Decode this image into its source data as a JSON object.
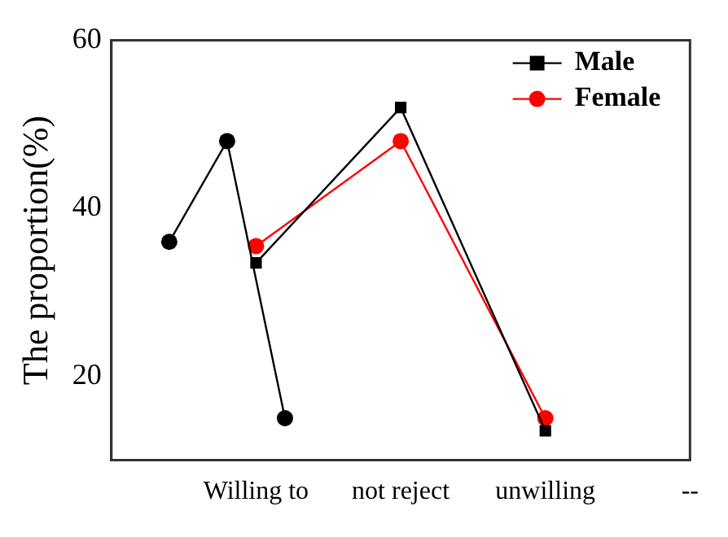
{
  "chart_data": {
    "type": "line",
    "ylabel": "The proportion(%)",
    "categories": [
      null,
      null,
      null,
      null,
      null,
      "Willing to",
      null,
      null,
      null,
      null,
      "not reject",
      null,
      null,
      null,
      null,
      "unwilling",
      null,
      null,
      null,
      null,
      "--"
    ],
    "ylim": [
      10,
      60
    ],
    "yticks": [
      20,
      40,
      60
    ],
    "grid": false,
    "legend": "top right",
    "line_style": "solid",
    "series": [
      {
        "color": "#000000",
        "marker": "circle",
        "values": [
          null,
          null,
          36,
          null,
          48,
          null,
          15,
          null,
          null,
          null,
          null,
          null,
          null,
          null,
          null,
          null,
          null,
          null,
          null,
          null,
          null
        ]
      },
      {
        "name": "Male",
        "color": "#000000",
        "marker": "square",
        "values": [
          null,
          null,
          null,
          null,
          null,
          33.5,
          null,
          null,
          null,
          null,
          52,
          null,
          null,
          null,
          null,
          13.5,
          null,
          null,
          null,
          null,
          null
        ]
      },
      {
        "name": "Female",
        "color": "#ff0000",
        "marker": "circle",
        "values": [
          null,
          null,
          null,
          null,
          null,
          35.5,
          null,
          null,
          null,
          null,
          48,
          null,
          null,
          null,
          null,
          15,
          null,
          null,
          null,
          null,
          null
        ]
      }
    ]
  }
}
